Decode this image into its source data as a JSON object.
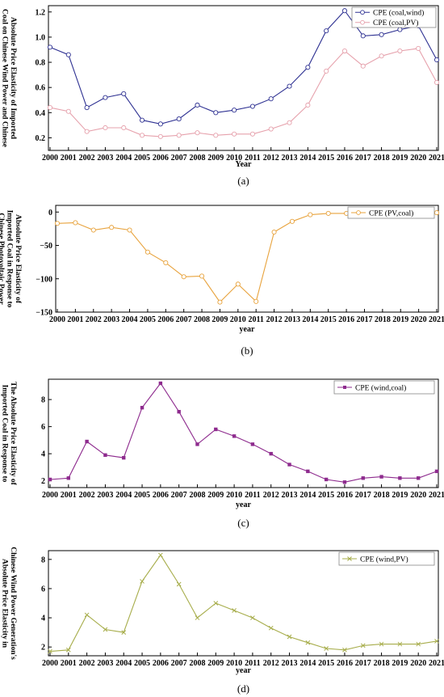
{
  "chart_data": [
    {
      "type": "line",
      "panel_label": "(a)",
      "x": [
        2000,
        2001,
        2002,
        2003,
        2004,
        2005,
        2006,
        2007,
        2008,
        2009,
        2010,
        2011,
        2012,
        2013,
        2014,
        2015,
        2016,
        2017,
        2018,
        2019,
        2020,
        2021
      ],
      "xlabel": "Year",
      "ylabel_lines": [
        "Absolute Price Elasticity of Imported",
        "Coal on Chinese Wind Power and Chinese",
        "Photovoltaic Power Generation"
      ],
      "ylim": [
        0.1,
        1.25
      ],
      "yticks": [
        0.2,
        0.4,
        0.6,
        0.8,
        1.0,
        1.2
      ],
      "ytick_labels": [
        "0.2",
        "0.4",
        "0.6",
        "0.8",
        "1.0",
        "1.2"
      ],
      "legend_position": "top-right",
      "series": [
        {
          "name": "CPE (coal,wind)",
          "color": "#2e3192",
          "marker": "circle",
          "values": [
            0.92,
            0.86,
            0.44,
            0.52,
            0.55,
            0.34,
            0.31,
            0.35,
            0.46,
            0.4,
            0.42,
            0.45,
            0.51,
            0.61,
            0.76,
            1.05,
            1.21,
            1.01,
            1.02,
            1.06,
            1.09,
            0.82
          ]
        },
        {
          "name": "CPE (coal,PV)",
          "color": "#e6a1ac",
          "marker": "circle",
          "values": [
            0.44,
            0.41,
            0.25,
            0.28,
            0.28,
            0.22,
            0.21,
            0.22,
            0.24,
            0.22,
            0.23,
            0.23,
            0.27,
            0.32,
            0.46,
            0.73,
            0.89,
            0.77,
            0.85,
            0.89,
            0.91,
            0.64
          ]
        }
      ]
    },
    {
      "type": "line",
      "panel_label": "(b)",
      "x": [
        2000,
        2001,
        2002,
        2003,
        2004,
        2005,
        2006,
        2007,
        2008,
        2009,
        2010,
        2011,
        2012,
        2013,
        2014,
        2015,
        2016,
        2017,
        2018,
        2019,
        2020,
        2021
      ],
      "xlabel": "year",
      "ylabel_lines": [
        "Absolute Price Elasticity of",
        "Imported Coal in Response to",
        "Chinese Photovoltaic Power",
        "Generation"
      ],
      "ylim": [
        -150,
        10
      ],
      "yticks": [
        -150,
        -100,
        -50,
        0
      ],
      "ytick_labels": [
        "−150",
        "−100",
        "−50",
        "0"
      ],
      "legend_position": "top-right",
      "series": [
        {
          "name": "CPE (PV,coal)",
          "color": "#e8a33d",
          "marker": "circle",
          "values": [
            -17,
            -16,
            -27,
            -23,
            -27,
            -60,
            -76,
            -97,
            -96,
            -135,
            -108,
            -134,
            -30,
            -14,
            -4,
            -2,
            -2,
            -1,
            -1,
            -1,
            -1,
            -1
          ]
        }
      ]
    },
    {
      "type": "line",
      "panel_label": "(c)",
      "x": [
        2000,
        2001,
        2002,
        2003,
        2004,
        2005,
        2006,
        2007,
        2008,
        2009,
        2010,
        2011,
        2012,
        2013,
        2014,
        2015,
        2016,
        2017,
        2018,
        2019,
        2020,
        2021
      ],
      "xlabel": "year",
      "ylabel_lines": [
        "The Absolute Price Elasticity of",
        "Imported Coal in Response to",
        "Chinese Wind Power Generation"
      ],
      "ylim": [
        1.5,
        9.5
      ],
      "yticks": [
        2,
        4,
        6,
        8
      ],
      "ytick_labels": [
        "2",
        "4",
        "6",
        "8"
      ],
      "legend_position": "top-right",
      "series": [
        {
          "name": "CPE (wind,coal)",
          "color": "#8e2b8e",
          "marker": "square",
          "values": [
            2.1,
            2.2,
            4.9,
            3.9,
            3.7,
            7.4,
            9.2,
            7.1,
            4.7,
            5.8,
            5.3,
            4.7,
            4.0,
            3.2,
            2.7,
            2.1,
            1.9,
            2.2,
            2.3,
            2.2,
            2.2,
            2.7
          ]
        }
      ]
    },
    {
      "type": "line",
      "panel_label": "(d)",
      "x": [
        2000,
        2001,
        2002,
        2003,
        2004,
        2005,
        2006,
        2007,
        2008,
        2009,
        2010,
        2011,
        2012,
        2013,
        2014,
        2015,
        2016,
        2017,
        2018,
        2019,
        2020,
        2021
      ],
      "xlabel": "year",
      "ylabel_lines": [
        "Chinese Wind Power Generation's",
        "Absolute Price Elasticity in",
        "Relation to Chinese Photovoltaic",
        "Power Generation"
      ],
      "ylim": [
        1.4,
        8.6
      ],
      "yticks": [
        2,
        4,
        6,
        8
      ],
      "ytick_labels": [
        "2",
        "4",
        "6",
        "8"
      ],
      "legend_position": "top-right",
      "series": [
        {
          "name": "CPE (wind,PV)",
          "color": "#a7ad4b",
          "marker": "x",
          "values": [
            1.7,
            1.8,
            4.2,
            3.2,
            3.0,
            6.5,
            8.3,
            6.3,
            4.0,
            5.0,
            4.5,
            4.0,
            3.3,
            2.7,
            2.3,
            1.9,
            1.8,
            2.1,
            2.2,
            2.2,
            2.2,
            2.4
          ]
        }
      ]
    }
  ]
}
